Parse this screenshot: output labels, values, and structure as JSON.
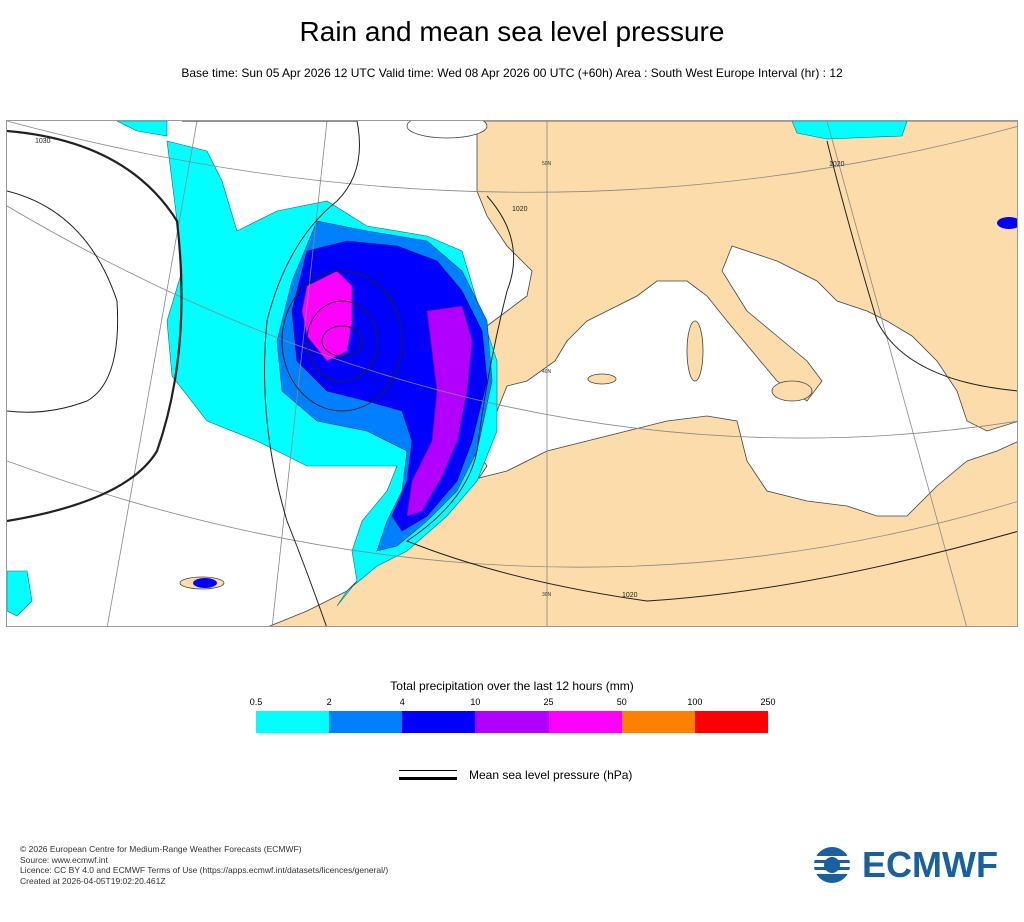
{
  "title": "Rain and mean sea level pressure",
  "subtitle": "Base time: Sun 05 Apr 2026 12 UTC Valid time: Wed 08 Apr 2026 00 UTC (+60h) Area : South West Europe Interval (hr) : 12",
  "map": {
    "land_color": "#fbdcaa",
    "sea_color": "#ffffff",
    "isobar_labels": [
      "1030",
      "1020",
      "1020",
      "1020"
    ],
    "graticule_labels": [
      "50N",
      "40N",
      "30N"
    ]
  },
  "legend": {
    "title": "Total precipitation over the last 12 hours (mm)",
    "ticks": [
      "0.5",
      "2",
      "4",
      "10",
      "25",
      "50",
      "100",
      "250"
    ],
    "colors": [
      "#00ffff",
      "#0080ff",
      "#0000ff",
      "#b200ff",
      "#ff00ff",
      "#ff8000",
      "#ff0000"
    ]
  },
  "mslp_legend": {
    "label": "Mean sea level pressure (hPa)"
  },
  "credits": [
    "© 2026 European Centre for Medium-Range Weather Forecasts (ECMWF)",
    "Source: www.ecmwf.int",
    "Licence: CC BY 4.0 and ECMWF Terms of Use (https://apps.ecmwf.int/datasets/licences/general/)",
    "Created at 2026-04-05T19:02:20.461Z"
  ],
  "logo": {
    "text": "ECMWF",
    "color": "#1a5f9e"
  }
}
